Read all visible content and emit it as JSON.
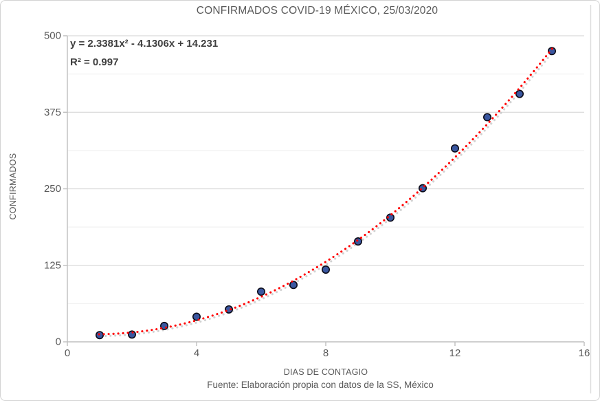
{
  "chart_data": {
    "type": "scatter",
    "title": "CONFIRMADOS COVID-19 MÉXICO, 25/03/2020",
    "xlabel": "DIAS DE CONTAGIO",
    "ylabel": "CONFIRMADOS",
    "source_note": "Fuente: Elaboración propia con datos de la SS, México",
    "x": [
      1,
      2,
      3,
      4,
      5,
      6,
      7,
      8,
      9,
      10,
      11,
      12,
      13,
      14,
      15
    ],
    "y": [
      11,
      12,
      26,
      41,
      53,
      82,
      93,
      118,
      164,
      203,
      251,
      316,
      367,
      405,
      475
    ],
    "xlim": [
      0,
      16
    ],
    "ylim": [
      0,
      500
    ],
    "x_ticks": [
      0,
      4,
      8,
      12,
      16
    ],
    "y_ticks": [
      0,
      125,
      250,
      375,
      500
    ],
    "y_minor_step": 62.5,
    "grid": "horizontal only, major + minor, no vertical gridlines",
    "legend_position": "none",
    "trendline": {
      "kind": "polynomial",
      "degree": 2,
      "coefficients": {
        "a": 2.3381,
        "b": -4.1306,
        "c": 14.231
      },
      "equation_label": "y = 2.3381x² - 4.1306x + 14.231",
      "r2_label": "R² = 0.997",
      "r2": 0.997,
      "x_start": 0.98,
      "x_end": 15.08,
      "style": "dotted"
    },
    "colors": {
      "marker_fill": "#3a57a0",
      "marker_stroke": "#0b0b18",
      "trend": "#ff0000",
      "trend_shadow": "#c6c6c6",
      "grid_major": "#dadada",
      "grid_minor": "#f2f2f2",
      "axis": "#bfbfbf",
      "right_border": "#dbdbdb",
      "tick_text": "#595959",
      "title_text": "#595959",
      "equation_text": "#3f3f3f"
    }
  }
}
